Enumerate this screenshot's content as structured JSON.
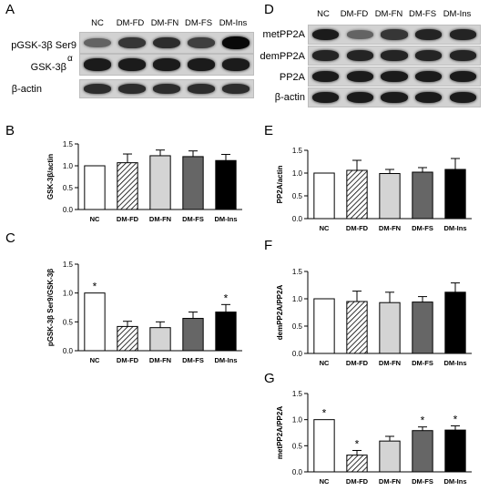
{
  "panels": {
    "A": "A",
    "B": "B",
    "C": "C",
    "D": "D",
    "E": "E",
    "F": "F",
    "G": "G"
  },
  "blot_left": {
    "columns": [
      "NC",
      "DM-FD",
      "DM-FN",
      "DM-FS",
      "DM-Ins"
    ],
    "rows": [
      {
        "label": "pGSK-3β Ser9",
        "intensity": [
          0.45,
          0.7,
          0.75,
          0.65,
          0.95
        ]
      },
      {
        "label": "GSK-3β",
        "label_sup": "α",
        "intensity": [
          0.85,
          0.85,
          0.85,
          0.85,
          0.85
        ]
      },
      {
        "label": "β-actin",
        "intensity": [
          0.75,
          0.75,
          0.75,
          0.75,
          0.75
        ]
      }
    ]
  },
  "blot_right": {
    "columns": [
      "NC",
      "DM-FD",
      "DM-FN",
      "DM-FS",
      "DM-Ins"
    ],
    "rows": [
      {
        "label": "metPP2A",
        "intensity": [
          0.85,
          0.45,
          0.7,
          0.8,
          0.8
        ]
      },
      {
        "label": "demPP2A",
        "intensity": [
          0.8,
          0.8,
          0.8,
          0.8,
          0.8
        ]
      },
      {
        "label": "PP2A",
        "intensity": [
          0.85,
          0.85,
          0.85,
          0.85,
          0.85
        ]
      },
      {
        "label": "β-actin",
        "intensity": [
          0.85,
          0.85,
          0.85,
          0.85,
          0.85
        ]
      }
    ]
  },
  "chart_data": [
    {
      "panel": "B",
      "type": "bar",
      "categories": [
        "NC",
        "DM-FD",
        "DM-FN",
        "DM-FS",
        "DM-Ins"
      ],
      "values": [
        1.0,
        1.07,
        1.23,
        1.21,
        1.12
      ],
      "errors": [
        0,
        0.2,
        0.13,
        0.13,
        0.14
      ],
      "ylabel": "GSK-3β/actin",
      "ylim": [
        0,
        1.5
      ],
      "yticks": [
        "0.0",
        "0.5",
        "1.0",
        "1.5"
      ],
      "stars": [
        "",
        "",
        "",
        "",
        ""
      ]
    },
    {
      "panel": "C",
      "type": "bar",
      "categories": [
        "NC",
        "DM-FD",
        "DM-FN",
        "DM-FS",
        "DM-Ins"
      ],
      "values": [
        1.0,
        0.42,
        0.4,
        0.56,
        0.67
      ],
      "errors": [
        0,
        0.09,
        0.1,
        0.11,
        0.13
      ],
      "ylabel": "pGSK-3β Ser9/GSK-3β",
      "ylim": [
        0,
        1.5
      ],
      "yticks": [
        "0.0",
        "0.5",
        "1.0",
        "1.5"
      ],
      "stars": [
        "*",
        "",
        "",
        "",
        "*"
      ]
    },
    {
      "panel": "E",
      "type": "bar",
      "categories": [
        "NC",
        "DM-FD",
        "DM-FN",
        "DM-FS",
        "DM-Ins"
      ],
      "values": [
        1.0,
        1.06,
        0.99,
        1.02,
        1.08
      ],
      "errors": [
        0,
        0.22,
        0.09,
        0.1,
        0.24
      ],
      "ylabel": "PP2A/actin",
      "ylim": [
        0,
        1.5
      ],
      "yticks": [
        "0.0",
        "0.5",
        "1.0",
        "1.5"
      ],
      "stars": [
        "",
        "",
        "",
        "",
        ""
      ]
    },
    {
      "panel": "F",
      "type": "bar",
      "categories": [
        "NC",
        "DM-FD",
        "DM-FN",
        "DM-FS",
        "DM-Ins"
      ],
      "values": [
        1.0,
        0.95,
        0.93,
        0.94,
        1.12
      ],
      "errors": [
        0,
        0.19,
        0.19,
        0.1,
        0.17
      ],
      "ylabel": "demPP2A/PP2A",
      "ylim": [
        0,
        1.5
      ],
      "yticks": [
        "0.0",
        "0.5",
        "1.0",
        "1.5"
      ],
      "stars": [
        "",
        "",
        "",
        "",
        ""
      ]
    },
    {
      "panel": "G",
      "type": "bar",
      "categories": [
        "NC",
        "DM-FD",
        "DM-FN",
        "DM-FS",
        "DM-Ins"
      ],
      "values": [
        1.0,
        0.32,
        0.59,
        0.79,
        0.8
      ],
      "errors": [
        0,
        0.09,
        0.09,
        0.07,
        0.08
      ],
      "ylabel": "metPP2A/PP2A",
      "ylim": [
        0,
        1.5
      ],
      "yticks": [
        "0.0",
        "0.5",
        "1.0",
        "1.5"
      ],
      "stars": [
        "*",
        "*",
        "",
        "*",
        "*"
      ]
    }
  ],
  "bar_styles": [
    {
      "fill": "#ffffff",
      "pattern": "none"
    },
    {
      "fill": "#ffffff",
      "pattern": "hatch"
    },
    {
      "fill": "#d4d4d4",
      "pattern": "none"
    },
    {
      "fill": "#666666",
      "pattern": "none"
    },
    {
      "fill": "#000000",
      "pattern": "none"
    }
  ]
}
